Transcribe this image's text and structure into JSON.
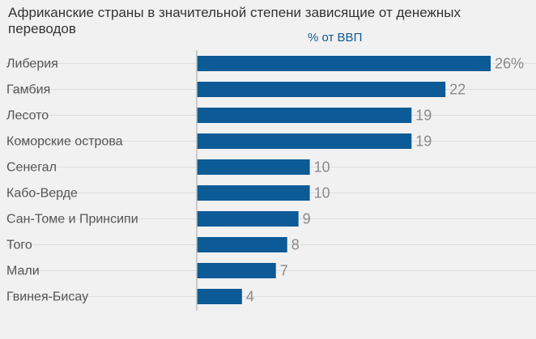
{
  "chart_data": {
    "type": "bar",
    "orientation": "horizontal",
    "title": "Африканские страны в значительной степени зависящие от денежных переводов",
    "subtitle": "% от ВВП",
    "categories": [
      "Либерия",
      "Гамбия",
      "Лесото",
      "Коморские острова",
      "Сенегал",
      "Кабо-Верде",
      "Сан-Томе и Принсипи",
      "Того",
      "Мали",
      "Гвинея-Бисау"
    ],
    "values": [
      26,
      22,
      19,
      19,
      10,
      10,
      9,
      8,
      7,
      4
    ],
    "value_labels": [
      "26%",
      "22",
      "19",
      "19",
      "10",
      "10",
      "9",
      "8",
      "7",
      "4"
    ],
    "xlim": [
      0,
      26
    ],
    "grid": true,
    "bar_color": "#0c5a96",
    "label_color": "#8a8a8a"
  }
}
